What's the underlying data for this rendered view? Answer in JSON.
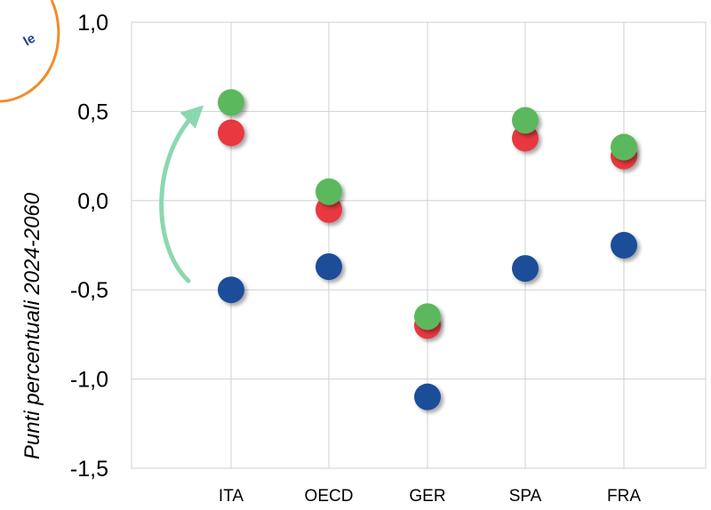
{
  "chart_data": {
    "type": "scatter",
    "title": "",
    "xlabel": "",
    "ylabel": "Punti percentuali 2024-2060",
    "categories": [
      "ITA",
      "OECD",
      "GER",
      "SPA",
      "FRA"
    ],
    "ylim": [
      -1.5,
      1.0
    ],
    "yticks": [
      "1,0",
      "0,5",
      "0,0",
      "-0,5",
      "-1,0",
      "-1,5"
    ],
    "grid": true,
    "legend": "none",
    "series": [
      {
        "color": "#1f4e99",
        "values": [
          -0.5,
          -0.37,
          -1.1,
          -0.38,
          -0.25
        ]
      },
      {
        "color": "#e8393f",
        "values": [
          0.38,
          -0.05,
          -0.7,
          0.35,
          0.25
        ]
      },
      {
        "color": "#5cb85c",
        "values": [
          0.55,
          0.05,
          -0.65,
          0.45,
          0.3
        ]
      }
    ],
    "annotation": {
      "type": "curved-arrow",
      "color": "#7fd4a8",
      "category": "ITA",
      "from_y": -0.45,
      "to_y": 0.55
    }
  },
  "badge": {
    "text": "le",
    "ring_color": "#f28c28"
  }
}
